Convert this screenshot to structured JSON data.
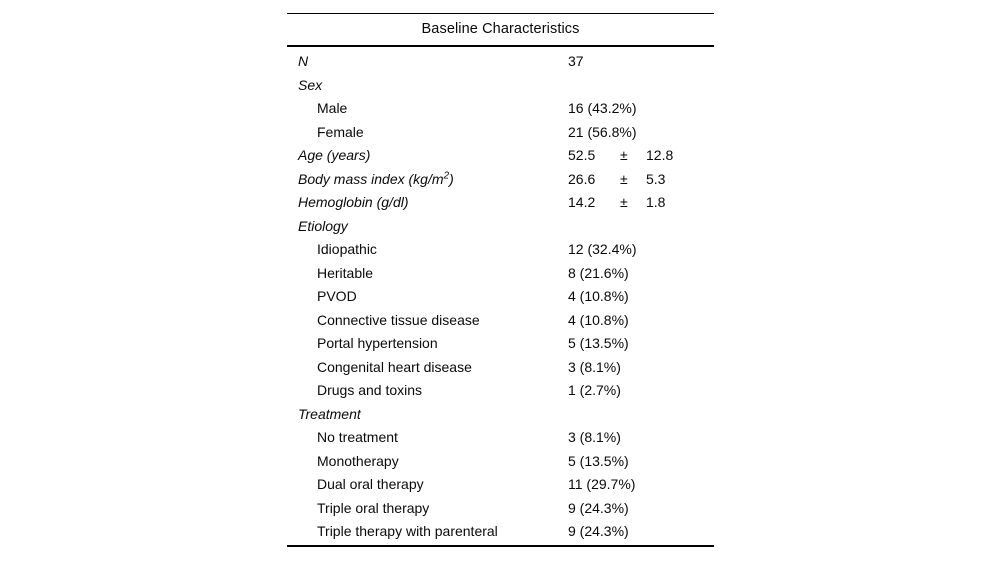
{
  "table": {
    "title": "Baseline Characteristics",
    "plus_minus_symbol": "±",
    "rows": [
      {
        "label": "N",
        "italic": true,
        "indent": 0,
        "value": "37"
      },
      {
        "label": "Sex",
        "italic": true,
        "indent": 0,
        "value": ""
      },
      {
        "label": "Male",
        "italic": false,
        "indent": 1,
        "value": "16 (43.2%)"
      },
      {
        "label": "Female",
        "italic": false,
        "indent": 1,
        "value": "21 (56.8%)"
      },
      {
        "label": "Age (years)",
        "italic": true,
        "indent": 0,
        "mean": "52.5",
        "pm": "±",
        "sd": "12.8"
      },
      {
        "label": "Body mass index (kg/m",
        "label_sup": "2",
        "label_after": ")",
        "italic": true,
        "indent": 0,
        "mean": "26.6",
        "pm": "±",
        "sd": "5.3"
      },
      {
        "label": "Hemoglobin (g/dl)",
        "italic": true,
        "indent": 0,
        "mean": "14.2",
        "pm": "±",
        "sd": "1.8"
      },
      {
        "label": "Etiology",
        "italic": true,
        "indent": 0,
        "value": ""
      },
      {
        "label": "Idiopathic",
        "italic": false,
        "indent": 1,
        "value": "12 (32.4%)"
      },
      {
        "label": "Heritable",
        "italic": false,
        "indent": 1,
        "value": "8 (21.6%)"
      },
      {
        "label": "PVOD",
        "italic": false,
        "indent": 1,
        "value": "4 (10.8%)"
      },
      {
        "label": "Connective tissue disease",
        "italic": false,
        "indent": 1,
        "value": "4 (10.8%)"
      },
      {
        "label": "Portal hypertension",
        "italic": false,
        "indent": 1,
        "value": "5 (13.5%)"
      },
      {
        "label": "Congenital heart disease",
        "italic": false,
        "indent": 1,
        "value": "3 (8.1%)"
      },
      {
        "label": "Drugs and toxins",
        "italic": false,
        "indent": 1,
        "value": "1 (2.7%)"
      },
      {
        "label": "Treatment",
        "italic": true,
        "indent": 0,
        "value": ""
      },
      {
        "label": "No treatment",
        "italic": false,
        "indent": 1,
        "value": "3 (8.1%)"
      },
      {
        "label": "Monotherapy",
        "italic": false,
        "indent": 1,
        "value": "5 (13.5%)"
      },
      {
        "label": "Dual oral therapy",
        "italic": false,
        "indent": 1,
        "value": "11 (29.7%)"
      },
      {
        "label": "Triple oral therapy",
        "italic": false,
        "indent": 1,
        "value": "9 (24.3%)"
      },
      {
        "label": "Triple therapy with parenteral",
        "italic": false,
        "indent": 1,
        "value": "9 (24.3%)"
      }
    ]
  }
}
